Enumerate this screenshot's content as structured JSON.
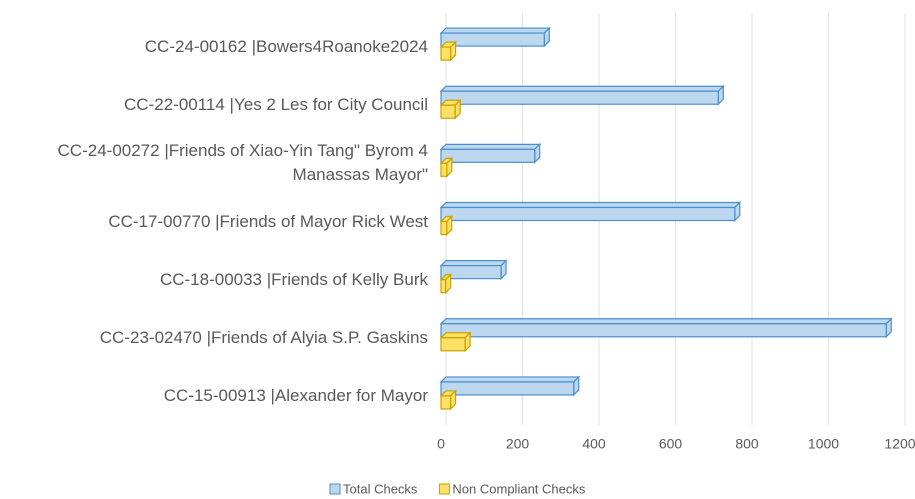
{
  "chart_data": {
    "type": "bar",
    "orientation": "horizontal",
    "categories": [
      "CC-24-00162 |Bowers4Roanoke2024",
      "CC-22-00114 |Yes 2 Les for City Council",
      "CC-24-00272 |Friends of Xiao-Yin Tang\" Byrom 4 Manassas Mayor\"",
      "CC-17-00770 |Friends of Mayor Rick West",
      "CC-18-00033 |Friends of Kelly Burk",
      "CC-23-02470 |Friends of Alyia S.P. Gaskins",
      "CC-15-00913 |Alexander for Mayor"
    ],
    "series": [
      {
        "name": "Total Checks",
        "color": "#bdd7ee",
        "stroke": "#4a8fd0",
        "values": [
          270,
          725,
          245,
          768,
          157,
          1164,
          347
        ]
      },
      {
        "name": "Non Compliant Checks",
        "color": "#ffe066",
        "stroke": "#c9a300",
        "values": [
          25,
          37,
          15,
          15,
          12,
          63,
          25
        ]
      }
    ],
    "xlim": [
      0,
      1200
    ],
    "xticks": [
      0,
      200,
      400,
      600,
      800,
      1000,
      1200
    ],
    "grid": true,
    "legend": "bottom"
  }
}
